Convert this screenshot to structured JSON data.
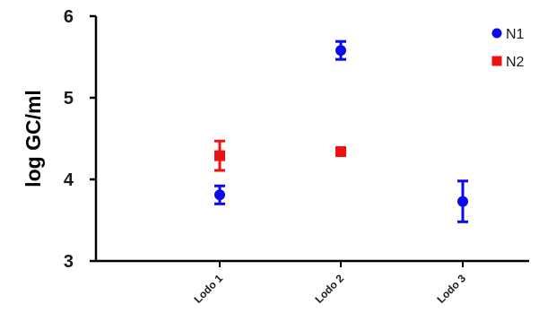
{
  "chart_data": {
    "type": "scatter",
    "categories": [
      "Lodo 1",
      "Lodo 2",
      "Lodo 3"
    ],
    "ylabel": "log GC/ml",
    "xlabel": "",
    "ylim": [
      3,
      6
    ],
    "yticks": [
      3,
      4,
      5,
      6
    ],
    "grid": false,
    "legend_position": "top-right",
    "series": [
      {
        "name": "N1",
        "marker": "circle",
        "color": "#0a0aee",
        "points": [
          {
            "category": "Lodo 1",
            "y": 3.81,
            "error": 0.11
          },
          {
            "category": "Lodo 2",
            "y": 5.58,
            "error": 0.11
          },
          {
            "category": "Lodo 3",
            "y": 3.73,
            "error": 0.25
          }
        ]
      },
      {
        "name": "N2",
        "marker": "square",
        "color": "#ee1111",
        "points": [
          {
            "category": "Lodo 1",
            "y": 4.29,
            "error": 0.18
          },
          {
            "category": "Lodo 2",
            "y": 4.34,
            "error": 0.0
          }
        ]
      }
    ]
  }
}
